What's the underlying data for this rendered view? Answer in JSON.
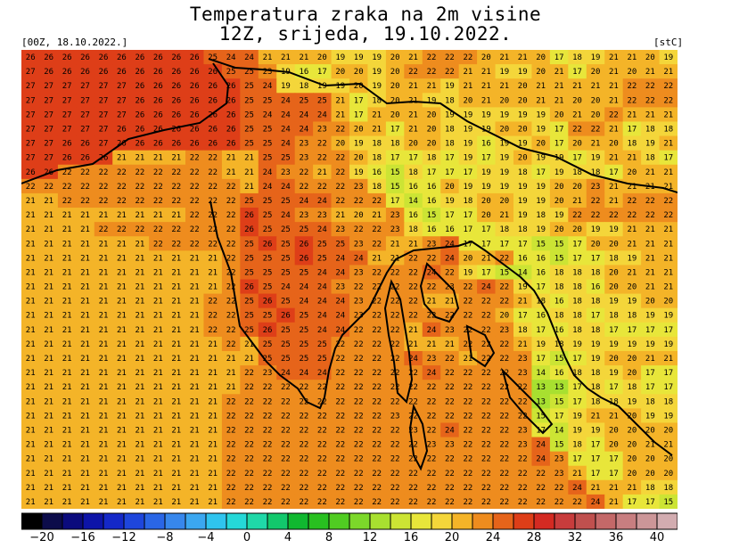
{
  "header": {
    "title_line1": "Temperatura zraka na 2m visine",
    "title_line2": "12Z, srijeda, 19.10.2022.",
    "run_label": "[00Z, 18.10.2022.]",
    "unit_label": "[stC]"
  },
  "colorbar": {
    "levels": [
      -22,
      -20,
      -18,
      -16,
      -14,
      -12,
      -10,
      -8,
      -6,
      -4,
      -2,
      0,
      2,
      4,
      6,
      8,
      10,
      12,
      14,
      16,
      18,
      20,
      22,
      24,
      26,
      28,
      30,
      32,
      34,
      36,
      38,
      40,
      42
    ],
    "colors": [
      "#000000",
      "#0c0c4a",
      "#0b0b7d",
      "#0d14a8",
      "#1428c8",
      "#1e46dc",
      "#2a66e6",
      "#3787ec",
      "#3ba7f0",
      "#2fc4ee",
      "#25d8d8",
      "#1fd8a8",
      "#12c86c",
      "#10b830",
      "#28c020",
      "#50cc22",
      "#7cd82a",
      "#a8e030",
      "#cce434",
      "#e8e63a",
      "#f4d63a",
      "#f4b428",
      "#ee8c1e",
      "#e6641a",
      "#de3e18",
      "#d42a22",
      "#c83c3c",
      "#c0504e",
      "#c46868",
      "#c87e80",
      "#cc9698",
      "#d2acb0"
    ],
    "tick_labels": [
      "−20",
      "−16",
      "−12",
      "−8",
      "−4",
      "0",
      "4",
      "8",
      "12",
      "16",
      "20",
      "24",
      "28",
      "32",
      "36",
      "40"
    ],
    "tick_values": [
      -20,
      -16,
      -12,
      -8,
      -4,
      0,
      4,
      8,
      12,
      16,
      20,
      24,
      28,
      32,
      36,
      40
    ]
  },
  "map": {
    "region": "Istria and Kvarner, Croatia",
    "grid_rows": [
      [
        26,
        26,
        26,
        26,
        26,
        26,
        26,
        26,
        26,
        26,
        25,
        24,
        24,
        21,
        21,
        21,
        20,
        19,
        19,
        19,
        20,
        21,
        22,
        22,
        22,
        20,
        21,
        21,
        20,
        17,
        18,
        19,
        21,
        21,
        20,
        19
      ],
      [
        27,
        26,
        26,
        26,
        26,
        26,
        26,
        26,
        26,
        26,
        26,
        25,
        25,
        23,
        19,
        16,
        17,
        20,
        20,
        19,
        20,
        22,
        22,
        22,
        21,
        21,
        19,
        19,
        20,
        21,
        17,
        20,
        21,
        20,
        21,
        21
      ],
      [
        27,
        27,
        27,
        27,
        27,
        27,
        26,
        26,
        26,
        26,
        26,
        26,
        25,
        24,
        19,
        18,
        19,
        19,
        20,
        19,
        20,
        21,
        21,
        19,
        21,
        21,
        21,
        20,
        21,
        21,
        21,
        21,
        21,
        22,
        22,
        22
      ],
      [
        27,
        27,
        27,
        27,
        27,
        27,
        26,
        26,
        26,
        26,
        26,
        26,
        25,
        25,
        24,
        25,
        25,
        21,
        17,
        18,
        20,
        21,
        19,
        18,
        20,
        21,
        20,
        20,
        21,
        21,
        20,
        20,
        21,
        22,
        22,
        22
      ],
      [
        27,
        27,
        27,
        27,
        27,
        27,
        26,
        26,
        26,
        26,
        26,
        26,
        25,
        24,
        24,
        24,
        24,
        21,
        17,
        21,
        20,
        21,
        20,
        19,
        19,
        19,
        19,
        19,
        19,
        20,
        21,
        20,
        22,
        21,
        21,
        21
      ],
      [
        27,
        27,
        27,
        27,
        27,
        26,
        26,
        26,
        26,
        26,
        26,
        26,
        25,
        25,
        24,
        24,
        23,
        22,
        20,
        21,
        17,
        21,
        20,
        18,
        19,
        19,
        20,
        20,
        19,
        17,
        22,
        22,
        21,
        17,
        18,
        18
      ],
      [
        27,
        27,
        26,
        26,
        27,
        26,
        26,
        26,
        26,
        26,
        26,
        26,
        25,
        25,
        24,
        23,
        22,
        20,
        19,
        18,
        18,
        20,
        20,
        18,
        19,
        16,
        19,
        19,
        20,
        17,
        20,
        21,
        20,
        18,
        19,
        21
      ],
      [
        27,
        27,
        26,
        26,
        26,
        21,
        21,
        21,
        21,
        22,
        22,
        21,
        21,
        25,
        25,
        23,
        22,
        22,
        20,
        18,
        17,
        17,
        18,
        17,
        19,
        17,
        19,
        20,
        19,
        19,
        17,
        19,
        21,
        21,
        18,
        17
      ],
      [
        26,
        26,
        22,
        22,
        22,
        22,
        22,
        22,
        22,
        22,
        22,
        21,
        21,
        24,
        23,
        22,
        21,
        22,
        19,
        16,
        15,
        18,
        17,
        17,
        17,
        19,
        19,
        18,
        17,
        19,
        18,
        18,
        17,
        20,
        21,
        21
      ],
      [
        22,
        22,
        22,
        22,
        22,
        22,
        22,
        22,
        22,
        22,
        22,
        22,
        21,
        24,
        24,
        22,
        22,
        22,
        23,
        18,
        15,
        16,
        16,
        20,
        19,
        19,
        19,
        19,
        19,
        20,
        20,
        23,
        21,
        21,
        21,
        21
      ],
      [
        21,
        21,
        22,
        22,
        22,
        22,
        22,
        22,
        22,
        22,
        22,
        22,
        25,
        25,
        25,
        24,
        24,
        22,
        22,
        22,
        17,
        14,
        16,
        19,
        18,
        20,
        20,
        19,
        19,
        20,
        21,
        22,
        21,
        22,
        22,
        22
      ],
      [
        21,
        21,
        21,
        21,
        21,
        21,
        21,
        21,
        21,
        22,
        22,
        22,
        26,
        25,
        24,
        23,
        23,
        21,
        20,
        21,
        23,
        16,
        15,
        17,
        17,
        20,
        21,
        19,
        18,
        19,
        22,
        22,
        22,
        22,
        22,
        22
      ],
      [
        21,
        21,
        21,
        21,
        22,
        22,
        22,
        22,
        22,
        22,
        22,
        22,
        26,
        25,
        25,
        25,
        24,
        23,
        22,
        22,
        23,
        18,
        16,
        16,
        17,
        17,
        18,
        18,
        19,
        20,
        20,
        19,
        19,
        21,
        21,
        21
      ],
      [
        21,
        21,
        21,
        21,
        21,
        21,
        21,
        22,
        22,
        22,
        22,
        22,
        25,
        26,
        25,
        26,
        25,
        25,
        23,
        22,
        21,
        21,
        23,
        24,
        17,
        17,
        17,
        17,
        15,
        15,
        17,
        20,
        20,
        21,
        21,
        21
      ],
      [
        21,
        21,
        21,
        21,
        21,
        21,
        21,
        21,
        21,
        21,
        21,
        22,
        25,
        25,
        25,
        26,
        25,
        24,
        24,
        21,
        21,
        22,
        22,
        24,
        20,
        21,
        22,
        16,
        16,
        15,
        17,
        17,
        18,
        19,
        21,
        21
      ],
      [
        21,
        21,
        21,
        21,
        21,
        21,
        21,
        21,
        21,
        21,
        21,
        22,
        25,
        25,
        25,
        25,
        24,
        24,
        23,
        22,
        22,
        22,
        24,
        22,
        19,
        17,
        15,
        14,
        16,
        18,
        18,
        18,
        20,
        21,
        21,
        21
      ],
      [
        21,
        21,
        21,
        21,
        21,
        21,
        21,
        21,
        21,
        21,
        21,
        22,
        26,
        25,
        24,
        24,
        24,
        23,
        22,
        22,
        22,
        22,
        22,
        23,
        22,
        24,
        22,
        19,
        17,
        18,
        18,
        16,
        20,
        20,
        21,
        21
      ],
      [
        21,
        21,
        21,
        21,
        21,
        21,
        21,
        21,
        21,
        21,
        22,
        22,
        25,
        26,
        25,
        24,
        24,
        24,
        23,
        22,
        22,
        22,
        21,
        21,
        22,
        22,
        22,
        21,
        18,
        16,
        18,
        18,
        19,
        19,
        20,
        20
      ],
      [
        21,
        21,
        21,
        21,
        21,
        21,
        21,
        21,
        21,
        21,
        22,
        22,
        25,
        25,
        26,
        25,
        24,
        24,
        23,
        22,
        22,
        22,
        22,
        22,
        22,
        22,
        20,
        17,
        16,
        18,
        18,
        17,
        18,
        18,
        19,
        19
      ],
      [
        21,
        21,
        21,
        21,
        21,
        21,
        21,
        21,
        21,
        21,
        22,
        22,
        25,
        26,
        25,
        25,
        24,
        24,
        22,
        22,
        22,
        21,
        24,
        23,
        22,
        22,
        23,
        18,
        17,
        16,
        18,
        18,
        17,
        17,
        17,
        17
      ],
      [
        21,
        21,
        21,
        21,
        21,
        21,
        21,
        21,
        21,
        21,
        21,
        22,
        21,
        25,
        25,
        25,
        25,
        22,
        22,
        22,
        22,
        21,
        21,
        21,
        22,
        22,
        22,
        21,
        19,
        18,
        19,
        19,
        19,
        19,
        19,
        19
      ],
      [
        21,
        21,
        21,
        21,
        21,
        21,
        21,
        21,
        21,
        21,
        21,
        21,
        21,
        25,
        25,
        25,
        25,
        22,
        22,
        22,
        22,
        24,
        23,
        22,
        21,
        22,
        22,
        23,
        17,
        15,
        17,
        19,
        20,
        20,
        21,
        21
      ],
      [
        21,
        21,
        21,
        21,
        21,
        21,
        21,
        21,
        21,
        21,
        21,
        21,
        22,
        23,
        24,
        24,
        24,
        22,
        22,
        22,
        22,
        22,
        24,
        22,
        22,
        22,
        22,
        23,
        14,
        16,
        18,
        18,
        19,
        20,
        17,
        17
      ],
      [
        21,
        21,
        21,
        21,
        21,
        21,
        21,
        21,
        21,
        21,
        21,
        21,
        22,
        22,
        22,
        22,
        22,
        22,
        22,
        22,
        22,
        22,
        22,
        22,
        22,
        22,
        22,
        22,
        13,
        13,
        17,
        18,
        17,
        18,
        17,
        17
      ],
      [
        21,
        21,
        21,
        21,
        21,
        21,
        21,
        21,
        21,
        21,
        21,
        22,
        22,
        22,
        22,
        22,
        22,
        22,
        22,
        22,
        22,
        22,
        22,
        22,
        22,
        22,
        22,
        22,
        13,
        15,
        17,
        18,
        18,
        19,
        18,
        18
      ],
      [
        21,
        21,
        21,
        21,
        21,
        21,
        21,
        21,
        21,
        21,
        21,
        22,
        22,
        22,
        22,
        22,
        22,
        22,
        22,
        22,
        23,
        22,
        22,
        22,
        22,
        22,
        22,
        22,
        15,
        17,
        19,
        21,
        21,
        20,
        19,
        19
      ],
      [
        21,
        21,
        21,
        21,
        21,
        21,
        21,
        21,
        21,
        21,
        21,
        22,
        22,
        22,
        22,
        22,
        22,
        22,
        22,
        22,
        22,
        23,
        22,
        24,
        22,
        22,
        22,
        23,
        17,
        14,
        19,
        19,
        20,
        20,
        20,
        20
      ],
      [
        21,
        21,
        21,
        21,
        21,
        21,
        21,
        21,
        21,
        21,
        21,
        22,
        22,
        22,
        22,
        22,
        22,
        22,
        22,
        22,
        22,
        22,
        23,
        23,
        22,
        22,
        22,
        23,
        24,
        15,
        18,
        17,
        20,
        20,
        21,
        21
      ],
      [
        21,
        21,
        21,
        21,
        21,
        21,
        21,
        21,
        21,
        21,
        21,
        22,
        22,
        22,
        22,
        22,
        22,
        22,
        22,
        22,
        22,
        22,
        22,
        22,
        22,
        22,
        22,
        22,
        24,
        23,
        17,
        17,
        17,
        20,
        20,
        20
      ],
      [
        21,
        21,
        21,
        21,
        21,
        21,
        21,
        21,
        21,
        21,
        21,
        22,
        22,
        22,
        22,
        22,
        22,
        22,
        22,
        22,
        22,
        22,
        22,
        22,
        22,
        22,
        22,
        22,
        22,
        23,
        21,
        17,
        17,
        20,
        20,
        20
      ],
      [
        21,
        21,
        21,
        21,
        21,
        21,
        21,
        21,
        21,
        21,
        21,
        22,
        22,
        22,
        22,
        22,
        22,
        22,
        22,
        22,
        22,
        22,
        22,
        22,
        22,
        22,
        22,
        22,
        22,
        22,
        24,
        21,
        21,
        21,
        18,
        18
      ],
      [
        21,
        21,
        21,
        21,
        21,
        21,
        21,
        21,
        21,
        21,
        21,
        22,
        22,
        22,
        22,
        22,
        22,
        22,
        22,
        22,
        22,
        22,
        22,
        22,
        22,
        22,
        22,
        22,
        22,
        22,
        22,
        24,
        21,
        17,
        17,
        15
      ]
    ]
  }
}
